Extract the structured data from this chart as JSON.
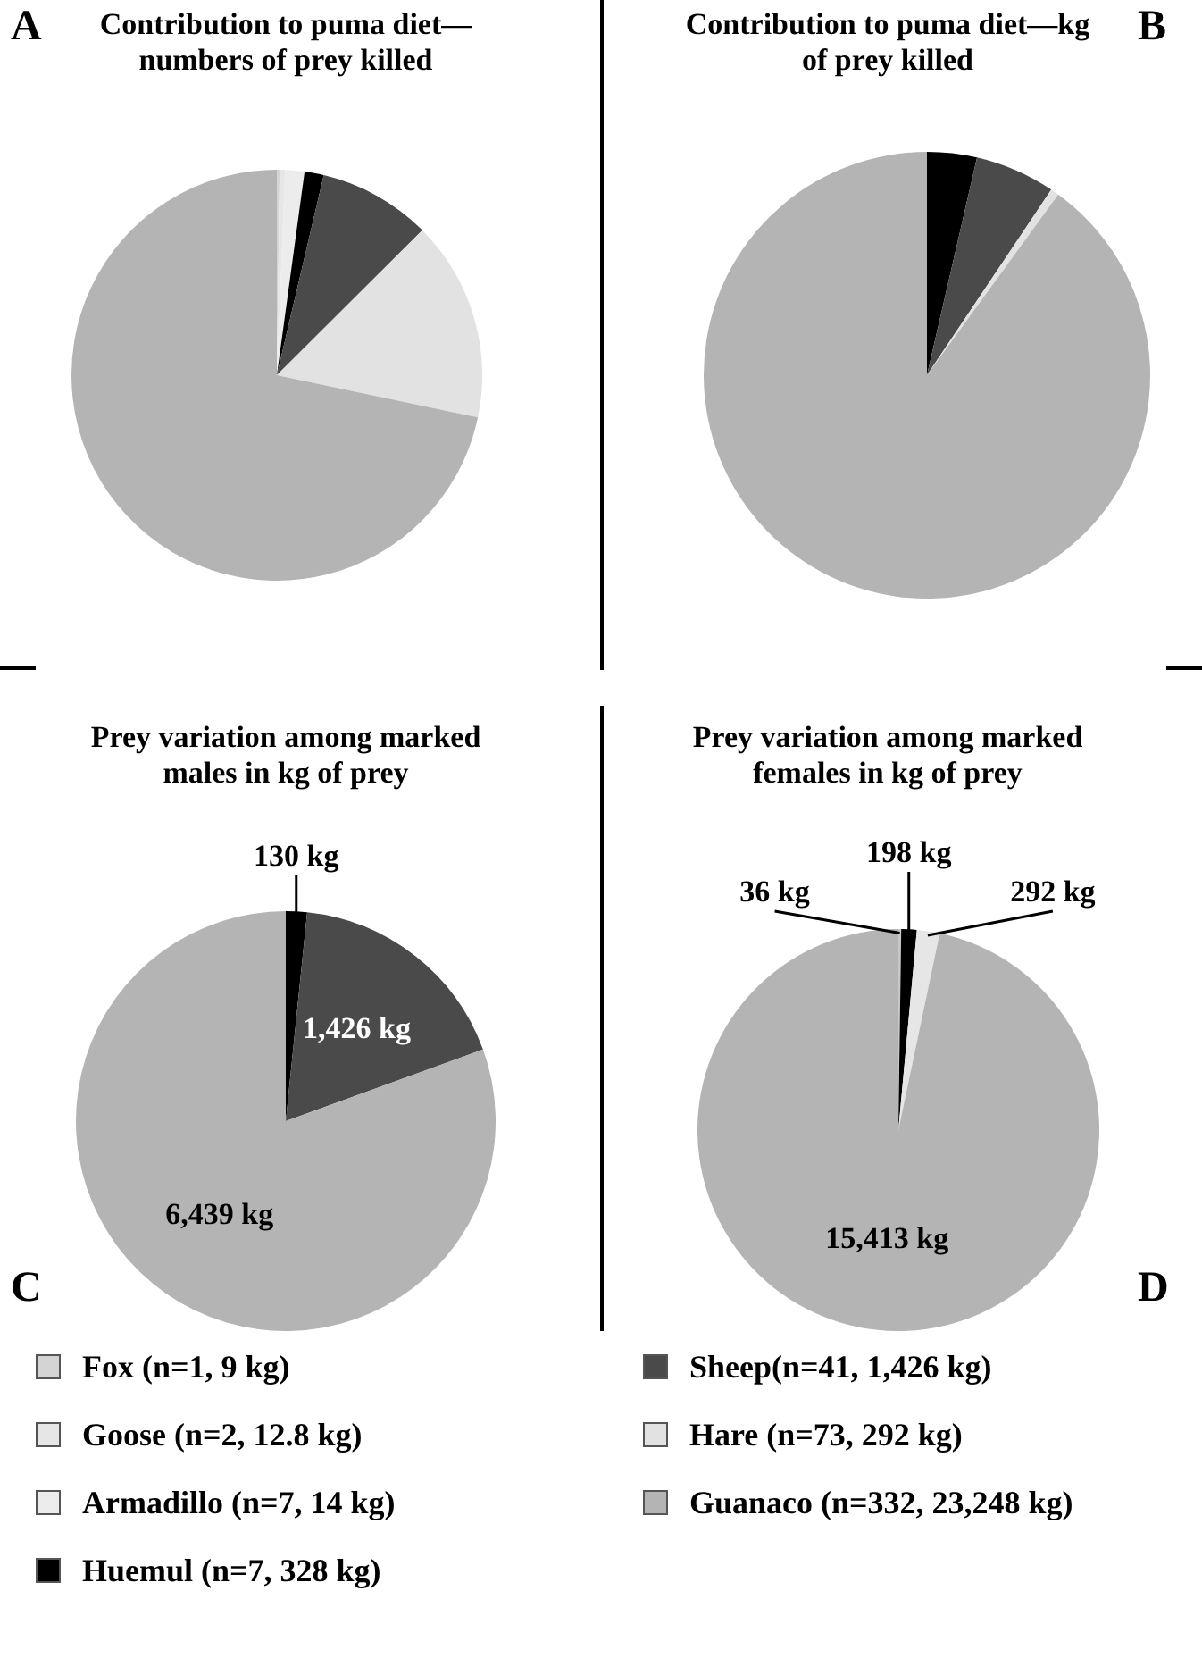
{
  "chart_data": [
    {
      "type": "pie",
      "title": "Contribution to puma diet—numbers of prey killed",
      "annotations": [
        "A"
      ],
      "categories": [
        "Fox (n=1, 9 kg)",
        "Goose (n=2, 12.8 kg)",
        "Armadillo (n=7, 14 kg)",
        "Huemul (n=7, 328 kg)",
        "Sheep(n=41, 1,426 kg)",
        "Hare (n=73, 292 kg)",
        "Guanaco (n=332, 23,248 kg)"
      ],
      "values": [
        1,
        2,
        7,
        7,
        41,
        73,
        332
      ],
      "colors": [
        "#d4d4d4",
        "#e6e6e6",
        "#ececec",
        "#000000",
        "#4a4a4a",
        "#e2e2e2",
        "#b4b4b4"
      ],
      "legend": "bottom"
    },
    {
      "type": "pie",
      "title": "Contribution to puma diet—kg of prey killed",
      "annotations": [
        "B"
      ],
      "categories": [
        null,
        null,
        null,
        null
      ],
      "values": [
        3.6,
        5.8,
        0.6,
        90
      ],
      "colors": [
        "#000000",
        "#4a4a4a",
        "#e2e2e2",
        "#b4b4b4"
      ]
    },
    {
      "type": "pie",
      "title": "Prey variation among marked males in kg of prey",
      "annotations": [
        "C"
      ],
      "categories": [
        null,
        null,
        null
      ],
      "values": [
        130,
        1426,
        6439
      ],
      "value_labels": [
        "130 kg",
        "1,426 kg",
        "6,439 kg"
      ],
      "colors": [
        "#000000",
        "#4a4a4a",
        "#b4b4b4"
      ]
    },
    {
      "type": "pie",
      "title": "Prey variation among marked females in kg of prey",
      "annotations": [
        "D"
      ],
      "categories": [
        null,
        null,
        null,
        null
      ],
      "values": [
        36,
        198,
        292,
        15413
      ],
      "value_labels": [
        "36 kg",
        "198 kg",
        "292 kg",
        "15,413 kg"
      ],
      "colors": [
        "#c8c8c8",
        "#000000",
        "#e6e6e6",
        "#b4b4b4"
      ]
    }
  ]
}
